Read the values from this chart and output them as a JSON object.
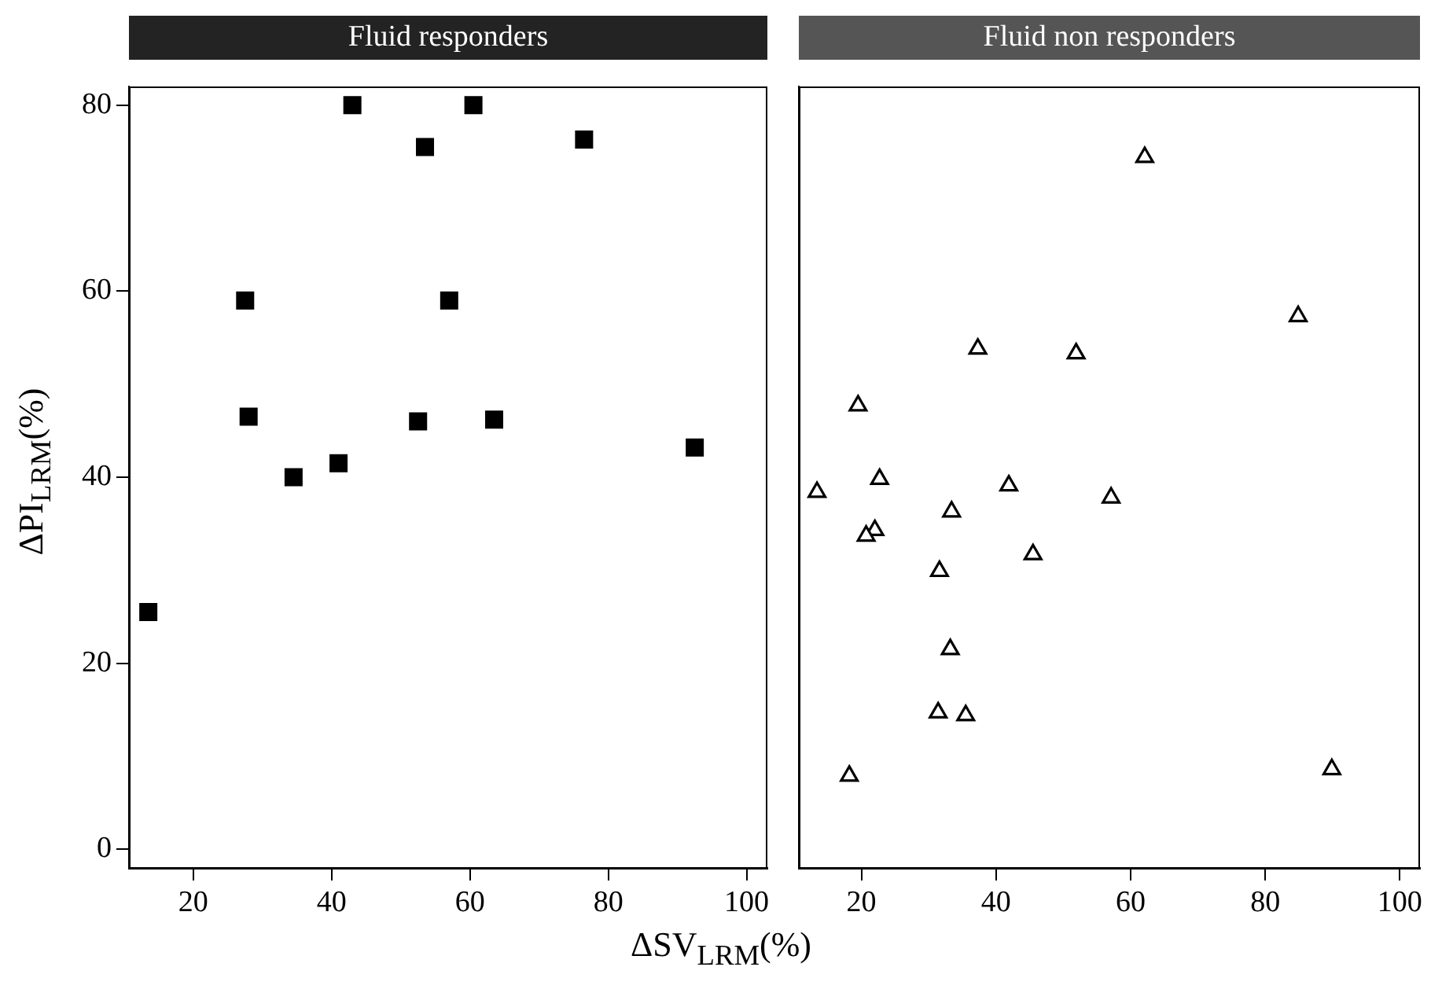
{
  "chart_data": [
    {
      "type": "scatter",
      "title": "Fluid responders",
      "xlabel": "ΔSV$_{LRM}$(%)",
      "ylabel": "ΔPI$_{LRM}$(%)",
      "x": [
        13.5,
        27.5,
        28,
        34.5,
        41,
        43,
        52.5,
        53.5,
        57,
        60.5,
        63.5,
        76.5,
        92.5
      ],
      "values": [
        25.5,
        59,
        46.5,
        40,
        41.5,
        80,
        46,
        75.5,
        59,
        80,
        46.2,
        76.3,
        43.2
      ],
      "color": "#000000",
      "marker": "square",
      "xlim": [
        10.7,
        103
      ],
      "xticks": [
        20,
        40,
        60,
        80,
        100
      ],
      "ylim": [
        -2,
        82
      ],
      "yticks": [
        0,
        20,
        40,
        60,
        80
      ],
      "grid": false,
      "legend": false
    },
    {
      "type": "scatter",
      "title": "Fluid non responders",
      "x": [
        13.4,
        19.5,
        22.7,
        22,
        20.7,
        33.4,
        31.6,
        33.2,
        31.4,
        35.5,
        18.2,
        37.3,
        41.9,
        45.5,
        51.9,
        57.1,
        62.1,
        84.9,
        89.9
      ],
      "values": [
        38.4,
        47.7,
        39.8,
        34.3,
        33.7,
        36.3,
        29.9,
        21.5,
        14.7,
        14.4,
        7.9,
        53.8,
        39.1,
        31.7,
        53.3,
        37.8,
        74.4,
        57.3,
        8.6
      ],
      "color": "#000000",
      "marker": "triangle",
      "xlim": [
        10.7,
        103
      ],
      "xticks": [
        20,
        40,
        60,
        80,
        100
      ],
      "ylim": [
        -2,
        82
      ],
      "yticks": [
        0,
        20,
        40,
        60,
        80
      ],
      "grid": false,
      "legend": false,
      "tick_labels": "x"
    }
  ]
}
